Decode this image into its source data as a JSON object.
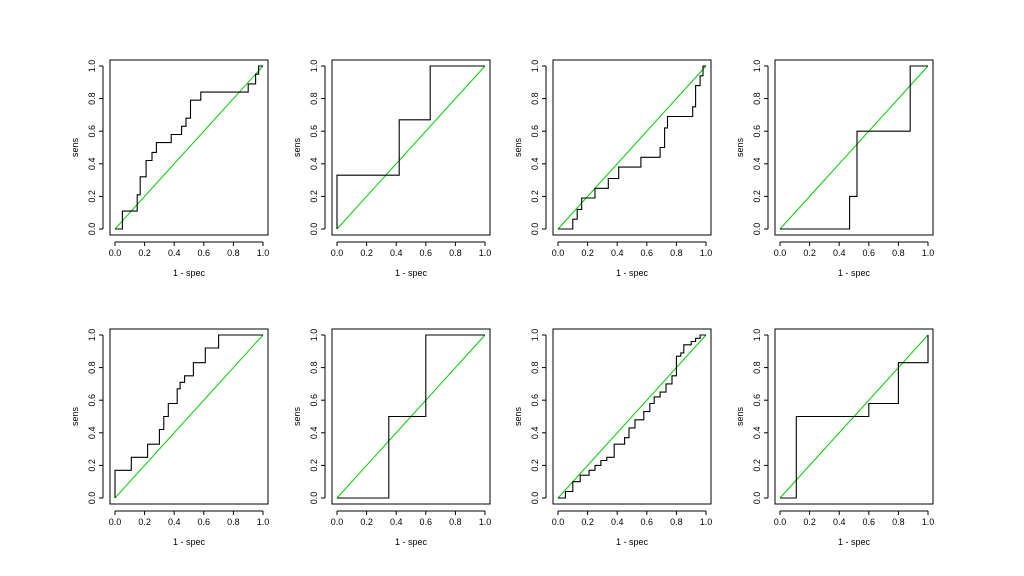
{
  "colors": {
    "curve": "#000000",
    "diagonal": "#00cc00",
    "box": "#000000",
    "background": "#ffffff"
  },
  "chart_data": [
    {
      "type": "line",
      "title": "",
      "xlabel": "1 - spec",
      "ylabel": "sens",
      "xlim": [
        0,
        1
      ],
      "ylim": [
        0,
        1
      ],
      "x_ticks": [
        "0.0",
        "0.2",
        "0.4",
        "0.6",
        "0.8",
        "1.0"
      ],
      "y_ticks": [
        "0.0",
        "0.2",
        "0.4",
        "0.6",
        "0.8",
        "1.0"
      ],
      "grid": false,
      "legend": "none",
      "reference_line": [
        [
          0,
          0
        ],
        [
          1,
          1
        ]
      ],
      "series": [
        {
          "x": [
            0,
            0.05,
            0.05,
            0.15,
            0.15,
            0.17,
            0.17,
            0.21,
            0.21,
            0.25,
            0.25,
            0.28,
            0.28,
            0.38,
            0.38,
            0.45,
            0.45,
            0.48,
            0.48,
            0.51,
            0.51,
            0.58,
            0.58,
            0.72,
            0.72,
            0.9,
            0.9,
            0.95,
            0.95,
            0.97,
            0.97,
            1.0
          ],
          "y": [
            0,
            0,
            0.11,
            0.11,
            0.21,
            0.21,
            0.32,
            0.32,
            0.42,
            0.42,
            0.47,
            0.47,
            0.53,
            0.53,
            0.58,
            0.58,
            0.63,
            0.63,
            0.68,
            0.68,
            0.79,
            0.79,
            0.84,
            0.84,
            0.84,
            0.84,
            0.89,
            0.89,
            0.95,
            0.95,
            1.0,
            1.0
          ]
        }
      ]
    },
    {
      "type": "line",
      "title": "",
      "xlabel": "1 - spec",
      "ylabel": "sens",
      "xlim": [
        0,
        1
      ],
      "ylim": [
        0,
        1
      ],
      "x_ticks": [
        "0.0",
        "0.2",
        "0.4",
        "0.6",
        "0.8",
        "1.0"
      ],
      "y_ticks": [
        "0.0",
        "0.2",
        "0.4",
        "0.6",
        "0.8",
        "1.0"
      ],
      "grid": false,
      "legend": "none",
      "reference_line": [
        [
          0,
          0
        ],
        [
          1,
          1
        ]
      ],
      "series": [
        {
          "x": [
            0,
            0,
            0.42,
            0.42,
            0.63,
            0.63,
            1.0
          ],
          "y": [
            0,
            0.33,
            0.33,
            0.67,
            0.67,
            1.0,
            1.0
          ]
        }
      ]
    },
    {
      "type": "line",
      "title": "",
      "xlabel": "1 - spec",
      "ylabel": "sens",
      "xlim": [
        0,
        1
      ],
      "ylim": [
        0,
        1
      ],
      "x_ticks": [
        "0.0",
        "0.2",
        "0.4",
        "0.6",
        "0.8",
        "1.0"
      ],
      "y_ticks": [
        "0.0",
        "0.2",
        "0.4",
        "0.6",
        "0.8",
        "1.0"
      ],
      "grid": false,
      "legend": "none",
      "reference_line": [
        [
          0,
          0
        ],
        [
          1,
          1
        ]
      ],
      "series": [
        {
          "x": [
            0,
            0.1,
            0.1,
            0.13,
            0.13,
            0.16,
            0.16,
            0.25,
            0.25,
            0.34,
            0.34,
            0.41,
            0.41,
            0.56,
            0.56,
            0.69,
            0.69,
            0.72,
            0.72,
            0.74,
            0.74,
            0.91,
            0.91,
            0.93,
            0.93,
            0.96,
            0.96,
            0.98,
            0.98,
            1.0
          ],
          "y": [
            0,
            0,
            0.06,
            0.06,
            0.12,
            0.12,
            0.19,
            0.19,
            0.25,
            0.25,
            0.31,
            0.31,
            0.38,
            0.38,
            0.44,
            0.44,
            0.5,
            0.5,
            0.62,
            0.62,
            0.69,
            0.69,
            0.75,
            0.75,
            0.88,
            0.88,
            0.94,
            0.94,
            1.0,
            1.0
          ]
        }
      ]
    },
    {
      "type": "line",
      "title": "",
      "xlabel": "1 - spec",
      "ylabel": "sens",
      "xlim": [
        0,
        1
      ],
      "ylim": [
        0,
        1
      ],
      "x_ticks": [
        "0.0",
        "0.2",
        "0.4",
        "0.6",
        "0.8",
        "1.0"
      ],
      "y_ticks": [
        "0.0",
        "0.2",
        "0.4",
        "0.6",
        "0.8",
        "1.0"
      ],
      "grid": false,
      "legend": "none",
      "reference_line": [
        [
          0,
          0
        ],
        [
          1,
          1
        ]
      ],
      "series": [
        {
          "x": [
            0,
            0.47,
            0.47,
            0.52,
            0.52,
            0.88,
            0.88,
            1.0
          ],
          "y": [
            0,
            0,
            0.2,
            0.2,
            0.6,
            0.6,
            1.0,
            1.0
          ]
        }
      ]
    },
    {
      "type": "line",
      "title": "",
      "xlabel": "1 - spec",
      "ylabel": "sens",
      "xlim": [
        0,
        1
      ],
      "ylim": [
        0,
        1
      ],
      "x_ticks": [
        "0.0",
        "0.2",
        "0.4",
        "0.6",
        "0.8",
        "1.0"
      ],
      "y_ticks": [
        "0.0",
        "0.2",
        "0.4",
        "0.6",
        "0.8",
        "1.0"
      ],
      "grid": false,
      "legend": "none",
      "reference_line": [
        [
          0,
          0
        ],
        [
          1,
          1
        ]
      ],
      "series": [
        {
          "x": [
            0,
            0,
            0.11,
            0.11,
            0.22,
            0.22,
            0.3,
            0.3,
            0.33,
            0.33,
            0.36,
            0.36,
            0.42,
            0.42,
            0.44,
            0.44,
            0.47,
            0.47,
            0.53,
            0.53,
            0.61,
            0.61,
            0.7,
            0.7,
            1.0
          ],
          "y": [
            0,
            0.17,
            0.17,
            0.25,
            0.25,
            0.33,
            0.33,
            0.42,
            0.42,
            0.5,
            0.5,
            0.58,
            0.58,
            0.67,
            0.67,
            0.71,
            0.71,
            0.75,
            0.75,
            0.83,
            0.83,
            0.92,
            0.92,
            1.0,
            1.0
          ]
        }
      ]
    },
    {
      "type": "line",
      "title": "",
      "xlabel": "1 - spec",
      "ylabel": "sens",
      "xlim": [
        0,
        1
      ],
      "ylim": [
        0,
        1
      ],
      "x_ticks": [
        "0.0",
        "0.2",
        "0.4",
        "0.6",
        "0.8",
        "1.0"
      ],
      "y_ticks": [
        "0.0",
        "0.2",
        "0.4",
        "0.6",
        "0.8",
        "1.0"
      ],
      "grid": false,
      "legend": "none",
      "reference_line": [
        [
          0,
          0
        ],
        [
          1,
          1
        ]
      ],
      "series": [
        {
          "x": [
            0,
            0.35,
            0.35,
            0.6,
            0.6,
            1.0
          ],
          "y": [
            0,
            0,
            0.5,
            0.5,
            1.0,
            1.0
          ]
        }
      ]
    },
    {
      "type": "line",
      "title": "",
      "xlabel": "1 - spec",
      "ylabel": "sens",
      "xlim": [
        0,
        1
      ],
      "ylim": [
        0,
        1
      ],
      "x_ticks": [
        "0.0",
        "0.2",
        "0.4",
        "0.6",
        "0.8",
        "1.0"
      ],
      "y_ticks": [
        "0.0",
        "0.2",
        "0.4",
        "0.6",
        "0.8",
        "1.0"
      ],
      "grid": false,
      "legend": "none",
      "reference_line": [
        [
          0,
          0
        ],
        [
          1,
          1
        ]
      ],
      "series": [
        {
          "x": [
            0,
            0.05,
            0.05,
            0.1,
            0.1,
            0.15,
            0.15,
            0.21,
            0.21,
            0.25,
            0.25,
            0.29,
            0.29,
            0.33,
            0.33,
            0.38,
            0.38,
            0.45,
            0.45,
            0.48,
            0.48,
            0.52,
            0.52,
            0.58,
            0.58,
            0.62,
            0.62,
            0.65,
            0.65,
            0.69,
            0.69,
            0.73,
            0.73,
            0.77,
            0.77,
            0.8,
            0.8,
            0.83,
            0.83,
            0.85,
            0.85,
            0.9,
            0.9,
            0.93,
            0.93,
            0.96,
            0.96,
            1.0
          ],
          "y": [
            0,
            0,
            0.04,
            0.04,
            0.1,
            0.1,
            0.14,
            0.14,
            0.17,
            0.17,
            0.2,
            0.2,
            0.23,
            0.23,
            0.25,
            0.25,
            0.33,
            0.33,
            0.37,
            0.37,
            0.43,
            0.43,
            0.48,
            0.48,
            0.53,
            0.53,
            0.58,
            0.58,
            0.62,
            0.62,
            0.65,
            0.65,
            0.7,
            0.7,
            0.75,
            0.75,
            0.87,
            0.87,
            0.89,
            0.89,
            0.94,
            0.94,
            0.96,
            0.96,
            0.98,
            0.98,
            1.0,
            1.0
          ]
        }
      ]
    },
    {
      "type": "line",
      "title": "",
      "xlabel": "1 - spec",
      "ylabel": "sens",
      "xlim": [
        0,
        1
      ],
      "ylim": [
        0,
        1
      ],
      "x_ticks": [
        "0.0",
        "0.2",
        "0.4",
        "0.6",
        "0.8",
        "1.0"
      ],
      "y_ticks": [
        "0.0",
        "0.2",
        "0.4",
        "0.6",
        "0.8",
        "1.0"
      ],
      "grid": false,
      "legend": "none",
      "reference_line": [
        [
          0,
          0
        ],
        [
          1,
          1
        ]
      ],
      "series": [
        {
          "x": [
            0,
            0.11,
            0.11,
            0.6,
            0.6,
            0.8,
            0.8,
            1.0,
            1.0
          ],
          "y": [
            0,
            0,
            0.5,
            0.5,
            0.58,
            0.58,
            0.83,
            0.83,
            1.0
          ]
        }
      ]
    }
  ]
}
